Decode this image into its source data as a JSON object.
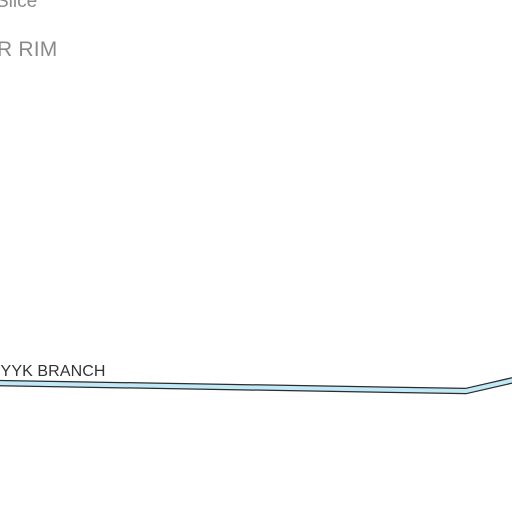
{
  "map": {
    "colors": {
      "background": "#ffffff",
      "water_fill": "#bfe9f7",
      "water_casing": "#2b2b2b",
      "label_gray": "#8a8a8a",
      "label_dark": "#333333"
    },
    "labels": {
      "top_partial": "Slice",
      "rim_partial": "R RIM",
      "stream_partial": "IYYK BRANCH"
    }
  }
}
